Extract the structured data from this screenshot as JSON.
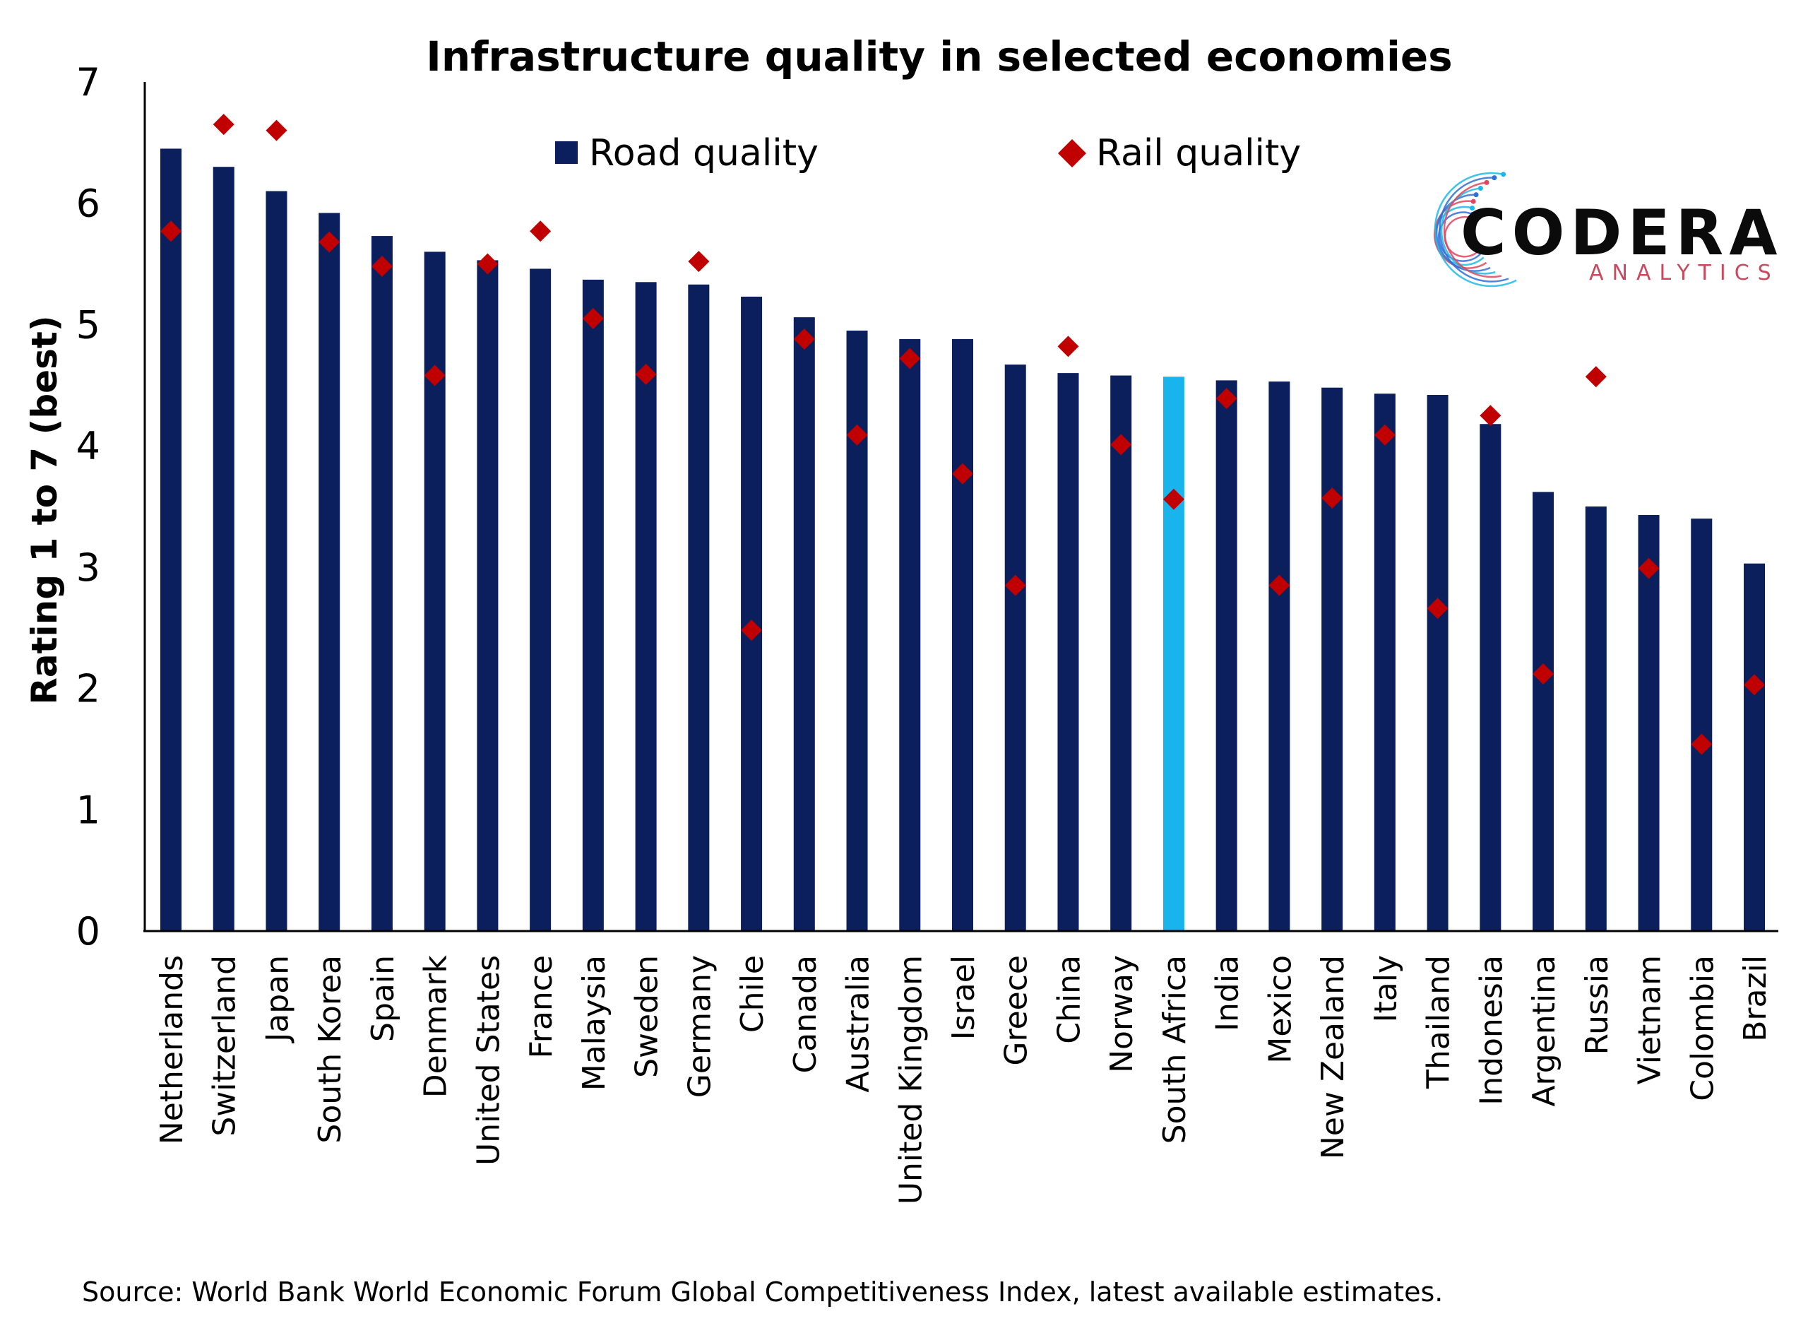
{
  "chart_data": {
    "type": "bar",
    "title": "Infrastructure quality in selected economies",
    "ylabel": "Rating 1 to 7 (best)",
    "xlabel": "",
    "ylim": [
      0,
      7
    ],
    "yticks": [
      0,
      1,
      2,
      3,
      4,
      5,
      6,
      7
    ],
    "categories": [
      "Netherlands",
      "Switzerland",
      "Japan",
      "South Korea",
      "Spain",
      "Denmark",
      "United States",
      "France",
      "Malaysia",
      "Sweden",
      "Germany",
      "Chile",
      "Canada",
      "Australia",
      "United Kingdom",
      "Israel",
      "Greece",
      "China",
      "Norway",
      "South Africa",
      "India",
      "Mexico",
      "New Zealand",
      "Italy",
      "Thailand",
      "Indonesia",
      "Argentina",
      "Russia",
      "Vietnam",
      "Colombia",
      "Brazil"
    ],
    "highlight_category": "South Africa",
    "series": [
      {
        "name": "Road quality",
        "kind": "bar",
        "color": "#0b1f5c",
        "highlight_color": "#19b4ec",
        "values": [
          6.45,
          6.3,
          6.1,
          5.92,
          5.73,
          5.6,
          5.53,
          5.46,
          5.37,
          5.35,
          5.33,
          5.23,
          5.06,
          4.95,
          4.88,
          4.88,
          4.67,
          4.6,
          4.58,
          4.57,
          4.54,
          4.53,
          4.48,
          4.43,
          4.42,
          4.18,
          3.62,
          3.5,
          3.43,
          3.4,
          3.03
        ]
      },
      {
        "name": "Rail quality",
        "kind": "marker",
        "marker": "diamond",
        "color": "#c00000",
        "values": [
          5.77,
          6.65,
          6.6,
          5.68,
          5.48,
          4.58,
          5.5,
          5.77,
          5.05,
          4.59,
          5.52,
          2.48,
          4.88,
          4.09,
          4.72,
          3.77,
          2.85,
          4.82,
          4.01,
          3.56,
          4.39,
          2.85,
          3.57,
          4.09,
          2.66,
          4.25,
          2.12,
          4.57,
          2.99,
          1.54,
          2.03
        ]
      }
    ],
    "legend": "top-center",
    "grid": false
  },
  "logo": {
    "name": "CODERA",
    "tagline": "ANALYTICS",
    "accent_colors": [
      "#e0475e",
      "#2f6fd6",
      "#1cb8e8"
    ]
  },
  "source": "Source: World Bank World Economic Forum Global Competitiveness Index, latest available estimates."
}
